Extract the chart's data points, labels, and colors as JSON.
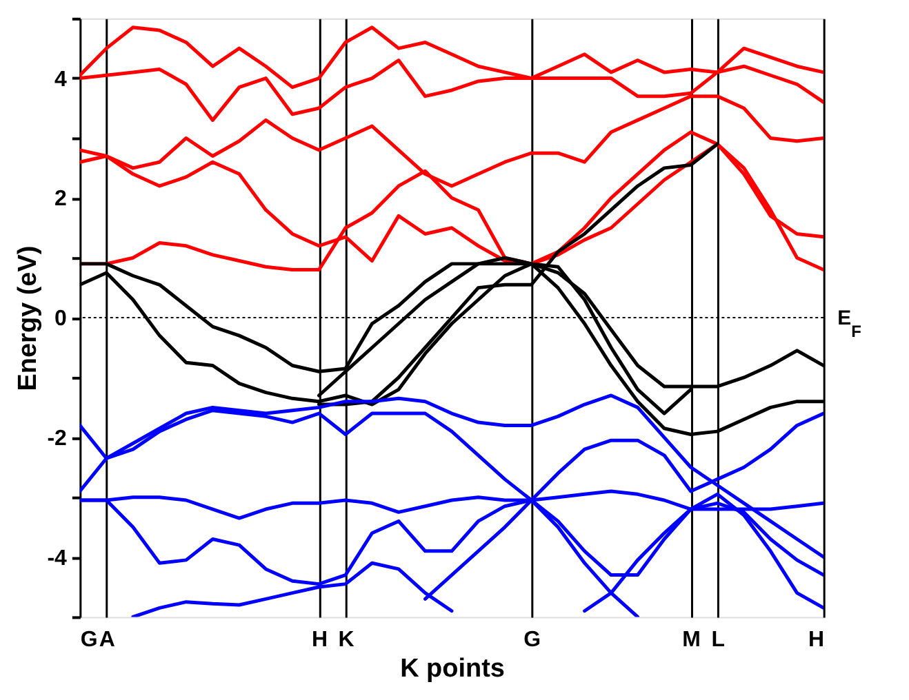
{
  "chart_data": {
    "type": "line",
    "xlabel": "K points",
    "ylabel": "Energy (eV)",
    "categories": [
      "G",
      "A",
      null,
      null,
      null,
      null,
      null,
      null,
      null,
      "H",
      "K",
      null,
      null,
      null,
      null,
      null,
      null,
      "G",
      null,
      null,
      null,
      null,
      null,
      "M",
      "L",
      null,
      null,
      null,
      "H"
    ],
    "ylim": [
      -5,
      5
    ],
    "yticks": [
      {
        "value": -5,
        "label": null
      },
      -4,
      {
        "value": -3,
        "label": null
      },
      -2,
      {
        "value": -1,
        "label": null
      },
      0,
      {
        "value": 1,
        "label": null
      },
      2,
      {
        "value": 3,
        "label": null
      },
      4,
      {
        "value": 5,
        "label": null
      }
    ],
    "grid": "x",
    "marker": "none",
    "line_style": "solid",
    "series": [
      {
        "color": "#ff0000",
        "values": [
          0.9,
          0.9,
          1.0,
          1.25,
          1.2,
          1.05,
          0.95,
          0.85,
          0.8,
          0.8,
          1.5,
          1.75,
          2.2,
          2.45,
          2.0,
          1.8,
          1.0,
          0.9,
          1.05,
          1.3,
          1.5,
          1.9,
          2.3,
          2.6,
          2.9,
          2.4,
          1.7,
          1.4,
          1.35
        ]
      },
      {
        "color": "#ff0000",
        "values": [
          2.6,
          2.7,
          2.4,
          2.2,
          2.35,
          2.6,
          2.4,
          1.8,
          1.4,
          1.2,
          1.35,
          0.95,
          1.7,
          1.4,
          1.5,
          1.2,
          0.95,
          0.9,
          1.1,
          1.5,
          2.0,
          2.4,
          2.8,
          3.1,
          2.9,
          2.5,
          1.8,
          1.0,
          0.8
        ]
      },
      {
        "color": "#ff0000",
        "values": [
          2.8,
          2.7,
          2.5,
          2.6,
          3.0,
          2.7,
          2.95,
          3.3,
          3.0,
          2.8,
          3.0,
          3.2,
          2.8,
          2.4,
          2.2,
          2.4,
          2.6,
          2.75,
          2.75,
          2.6,
          3.1,
          3.3,
          3.5,
          3.7,
          3.7,
          3.5,
          3.0,
          2.95,
          3.0
        ]
      },
      {
        "color": "#ff0000",
        "values": [
          4.0,
          4.05,
          4.1,
          4.15,
          3.9,
          3.3,
          3.85,
          4.0,
          3.4,
          3.5,
          3.85,
          4.0,
          4.3,
          3.7,
          3.8,
          3.95,
          4.0,
          4.0,
          4.0,
          4.0,
          4.0,
          3.7,
          3.7,
          3.75,
          4.1,
          4.5,
          4.35,
          4.2,
          4.1
        ]
      },
      {
        "color": "#ff0000",
        "values": [
          4.05,
          4.5,
          4.85,
          4.8,
          4.6,
          4.2,
          4.5,
          4.2,
          3.85,
          4.0,
          4.6,
          4.85,
          4.5,
          4.6,
          4.4,
          4.2,
          4.1,
          4.0,
          4.2,
          4.4,
          4.1,
          4.3,
          4.1,
          4.15,
          4.1,
          4.2,
          4.05,
          3.9,
          3.6
        ]
      },
      {
        "color": "#000000",
        "values": [
          0.9,
          0.9,
          0.7,
          0.55,
          0.2,
          -0.15,
          -0.3,
          -0.5,
          -0.8,
          -0.9,
          -0.85,
          -0.1,
          0.2,
          0.6,
          0.9,
          0.9,
          0.9,
          0.9,
          0.75,
          0.4,
          -0.2,
          -0.8,
          -1.15,
          -1.15,
          -1.15,
          -1.0,
          -0.8,
          -0.55,
          -0.8
        ]
      },
      {
        "color": "#000000",
        "values": [
          0.55,
          0.75,
          0.3,
          -0.3,
          -0.75,
          -0.8,
          -1.1,
          -1.25,
          -1.35,
          -1.4,
          -1.3,
          -1.45,
          -1.2,
          -0.6,
          -0.1,
          0.3,
          0.7,
          0.9,
          0.5,
          -0.1,
          -0.8,
          -1.4,
          -1.85,
          -1.95,
          -1.9,
          -1.7,
          -1.5,
          -1.4,
          -1.4
        ]
      },
      {
        "color": "#000000",
        "values": [
          null,
          null,
          null,
          null,
          null,
          null,
          null,
          null,
          null,
          -1.3,
          -0.9,
          -0.5,
          -0.1,
          0.3,
          0.6,
          0.9,
          1.0,
          0.9,
          0.85,
          0.3,
          -0.5,
          -1.2,
          -1.6,
          -1.2,
          null,
          null,
          null,
          null,
          null
        ]
      },
      {
        "color": "#000000",
        "values": [
          null,
          null,
          null,
          null,
          null,
          null,
          null,
          null,
          null,
          -1.45,
          -1.45,
          -1.4,
          -1.0,
          -0.5,
          0.0,
          0.5,
          0.55,
          0.55,
          1.1,
          1.4,
          1.8,
          2.2,
          2.5,
          2.55,
          2.9,
          null,
          null,
          null,
          null
        ]
      },
      {
        "color": "#0000ff",
        "values": [
          -1.8,
          -2.35,
          -2.1,
          -1.85,
          -1.6,
          -1.5,
          -1.55,
          -1.6,
          -1.55,
          -1.5,
          -1.4,
          -1.4,
          -1.35,
          -1.4,
          -1.6,
          -1.75,
          -1.8,
          -1.8,
          -1.65,
          -1.45,
          -1.3,
          -1.5,
          -2.0,
          -2.5,
          -2.8,
          -3.1,
          -3.4,
          -3.7,
          -4.0
        ]
      },
      {
        "color": "#0000ff",
        "values": [
          -2.9,
          -2.35,
          -2.2,
          -1.9,
          -1.7,
          -1.55,
          -1.6,
          -1.65,
          -1.75,
          -1.6,
          -1.95,
          -1.6,
          -1.6,
          -1.6,
          -1.9,
          -2.3,
          -2.7,
          -3.05,
          -2.6,
          -2.2,
          -2.05,
          -2.05,
          -2.3,
          -2.9,
          -2.7,
          -2.5,
          -2.2,
          -1.8,
          -1.6
        ]
      },
      {
        "color": "#0000ff",
        "values": [
          -3.05,
          -3.05,
          -3.0,
          -3.0,
          -3.05,
          -3.2,
          -3.35,
          -3.2,
          -3.1,
          -3.1,
          -3.05,
          -3.1,
          -3.25,
          -3.15,
          -3.05,
          -3.0,
          -3.05,
          -3.05,
          -3.0,
          -2.95,
          -2.9,
          -2.95,
          -3.05,
          -3.2,
          -3.2,
          -3.2,
          -3.2,
          -3.15,
          -3.1
        ]
      },
      {
        "color": "#0000ff",
        "values": [
          -3.05,
          -3.05,
          -3.5,
          -4.1,
          -4.05,
          -3.7,
          -3.8,
          -4.2,
          -4.4,
          -4.45,
          -4.3,
          -3.6,
          -3.4,
          -3.9,
          -3.9,
          -3.4,
          -3.15,
          -3.05,
          -3.4,
          -3.9,
          -4.3,
          -4.3,
          -3.7,
          -3.2,
          -3.1,
          -3.25,
          -3.7,
          -4.05,
          -4.3
        ]
      },
      {
        "color": "#0000ff",
        "values": [
          null,
          null,
          -5.0,
          -4.85,
          -4.75,
          -4.78,
          -4.8,
          -4.7,
          -4.6,
          -4.5,
          -4.45,
          -4.1,
          -4.2,
          -4.6,
          -4.9,
          null,
          null,
          null,
          null,
          null,
          null,
          null,
          null,
          null,
          null,
          null,
          null,
          null,
          null
        ]
      },
      {
        "color": "#0000ff",
        "values": [
          null,
          null,
          null,
          null,
          null,
          null,
          null,
          null,
          null,
          null,
          null,
          null,
          null,
          -4.7,
          -4.3,
          -3.9,
          -3.5,
          -3.05,
          -3.5,
          -4.1,
          -4.6,
          -5.0,
          null,
          null,
          null,
          null,
          null,
          null,
          null
        ]
      },
      {
        "color": "#0000ff",
        "values": [
          null,
          null,
          null,
          null,
          null,
          null,
          null,
          null,
          null,
          null,
          null,
          null,
          null,
          null,
          null,
          null,
          null,
          null,
          null,
          -4.9,
          -4.6,
          -4.05,
          -3.6,
          -3.2,
          -2.95,
          -3.3,
          -3.9,
          -4.6,
          -4.85
        ]
      }
    ],
    "ref_lines": [
      {
        "axis": "y",
        "value": 0,
        "label": "E$_{F}$",
        "color": "#000000",
        "line_style": "dotted"
      }
    ]
  }
}
